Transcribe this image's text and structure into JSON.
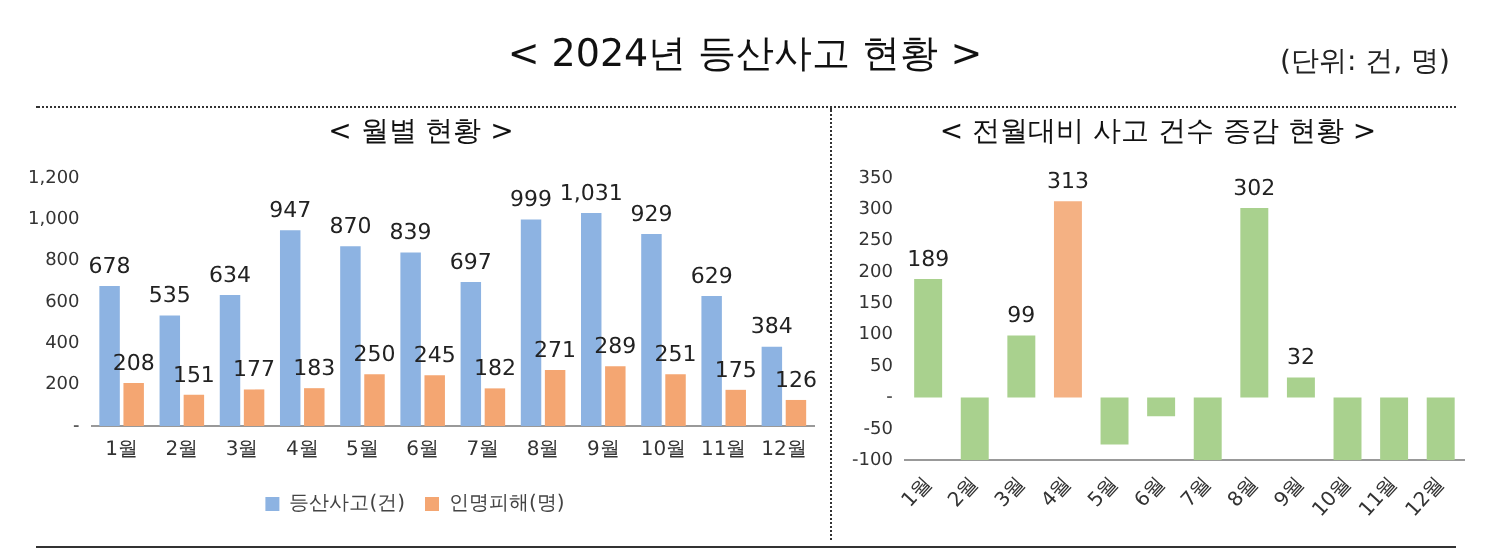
{
  "chart_data": [
    {
      "type": "bar",
      "title": "< 2024년 등산사고 현황 >",
      "subtitle": "< 월별 현황 >",
      "annotations": [
        "(단위: 건, 명)"
      ],
      "categories": [
        "1월",
        "2월",
        "3월",
        "4월",
        "5월",
        "6월",
        "7월",
        "8월",
        "9월",
        "10월",
        "11월",
        "12월"
      ],
      "series": [
        {
          "name": "등산사고(건)",
          "color": "#8db3e2",
          "values": [
            678,
            535,
            634,
            947,
            870,
            839,
            697,
            999,
            1031,
            929,
            629,
            384
          ],
          "value_labels": [
            "678",
            "535",
            "634",
            "947",
            "870",
            "839",
            "697",
            "999",
            "1,031",
            "929",
            "629",
            "384"
          ]
        },
        {
          "name": "인명피해(명)",
          "color": "#f4a672",
          "values": [
            208,
            151,
            177,
            183,
            250,
            245,
            182,
            271,
            289,
            251,
            175,
            126
          ],
          "value_labels": [
            "208",
            "151",
            "177",
            "183",
            "250",
            "245",
            "182",
            "271",
            "289",
            "251",
            "175",
            "126"
          ]
        }
      ],
      "ylim": [
        0,
        1200
      ],
      "yticks": [
        {
          "value": 0,
          "label": "-"
        },
        200,
        400,
        600,
        800,
        {
          "value": 1000,
          "label": "1,000"
        },
        {
          "value": 1200,
          "label": "1,200"
        }
      ],
      "legend": "bottom"
    },
    {
      "type": "bar",
      "title": "< 전월대비 사고 건수 증감 현황 >",
      "categories": [
        "1월",
        "2월",
        "3월",
        "4월",
        "5월",
        "6월",
        "7월",
        "8월",
        "9월",
        "10월",
        "11월",
        "12월"
      ],
      "values": [
        189,
        -100,
        99,
        313,
        -75,
        -30,
        -100,
        302,
        32,
        -100,
        -100,
        -100
      ],
      "colors": [
        "#a9d18e",
        "#a9d18e",
        "#a9d18e",
        "#f4b183",
        "#a9d18e",
        "#a9d18e",
        "#a9d18e",
        "#a9d18e",
        "#a9d18e",
        "#a9d18e",
        "#a9d18e",
        "#a9d18e"
      ],
      "value_labels": [
        "189",
        null,
        "99",
        "313",
        null,
        null,
        null,
        "302",
        "32",
        null,
        null,
        null
      ],
      "ylim": [
        -100,
        350
      ],
      "yticks": [
        -100,
        -50,
        {
          "value": 0,
          "label": "-"
        },
        50,
        100,
        150,
        200,
        250,
        300,
        350
      ]
    }
  ]
}
